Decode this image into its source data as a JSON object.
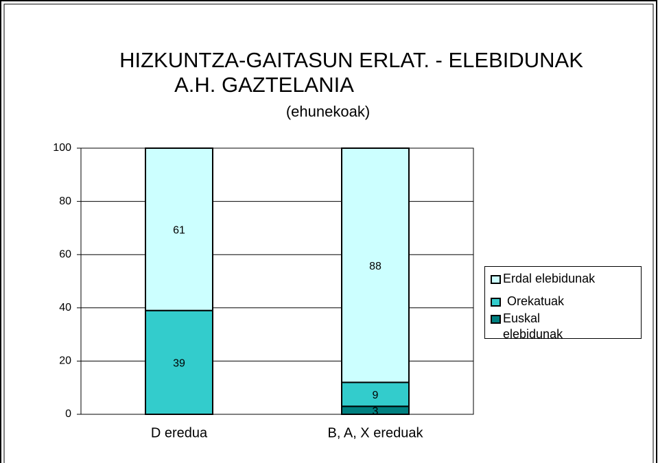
{
  "chart_data": {
    "type": "stacked_bar",
    "title": [
      "HIZKUNTZA-GAITASUN ERLAT. - ELEBIDUNAK",
      "A.H. GAZTELANIA"
    ],
    "subtitle": "(ehunekoak)",
    "categories": [
      "D eredua",
      "B, A, X ereduak"
    ],
    "series": [
      {
        "name": "Euskal elebidunak",
        "color": "#008080",
        "values": [
          null,
          3
        ]
      },
      {
        "name": "Orekatuak",
        "color": "#33cccc",
        "values": [
          39,
          9
        ]
      },
      {
        "name": "Erdal elebidunak",
        "color": "#ccffff",
        "values": [
          61,
          88
        ]
      }
    ],
    "ylim": [
      0,
      100
    ],
    "yticks": [
      0,
      20,
      40,
      60,
      80,
      100
    ],
    "grid": true,
    "legend": "right"
  }
}
